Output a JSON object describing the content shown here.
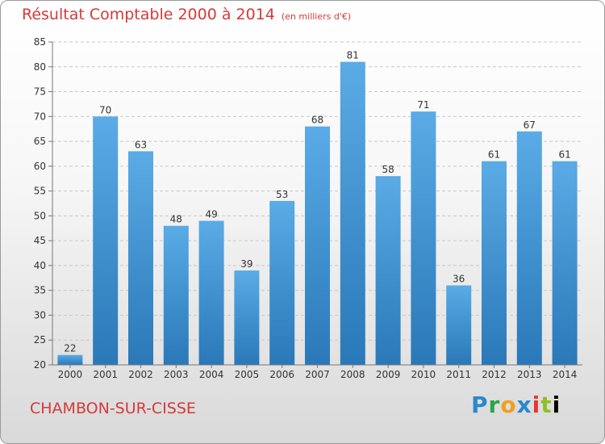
{
  "chart_data": {
    "type": "bar",
    "title": "Résultat Comptable 2000 à 2014",
    "unit": "(en milliers d'€)",
    "categories": [
      "2000",
      "2001",
      "2002",
      "2003",
      "2004",
      "2005",
      "2006",
      "2007",
      "2008",
      "2009",
      "2010",
      "2011",
      "2012",
      "2013",
      "2014"
    ],
    "values": [
      22,
      70,
      63,
      48,
      49,
      39,
      53,
      68,
      81,
      58,
      71,
      36,
      61,
      67,
      61
    ],
    "ylim": [
      20,
      85
    ],
    "yticks": [
      20,
      25,
      30,
      35,
      40,
      45,
      50,
      55,
      60,
      65,
      70,
      75,
      80,
      85
    ],
    "grid": true,
    "bar_color_top": "#5aabe6",
    "bar_color_bottom": "#2a78b8"
  },
  "footer": {
    "city": "CHAMBON-SUR-CISSE",
    "brand_letters": [
      "P",
      "r",
      "o",
      "x",
      "i",
      "t",
      "i"
    ]
  }
}
